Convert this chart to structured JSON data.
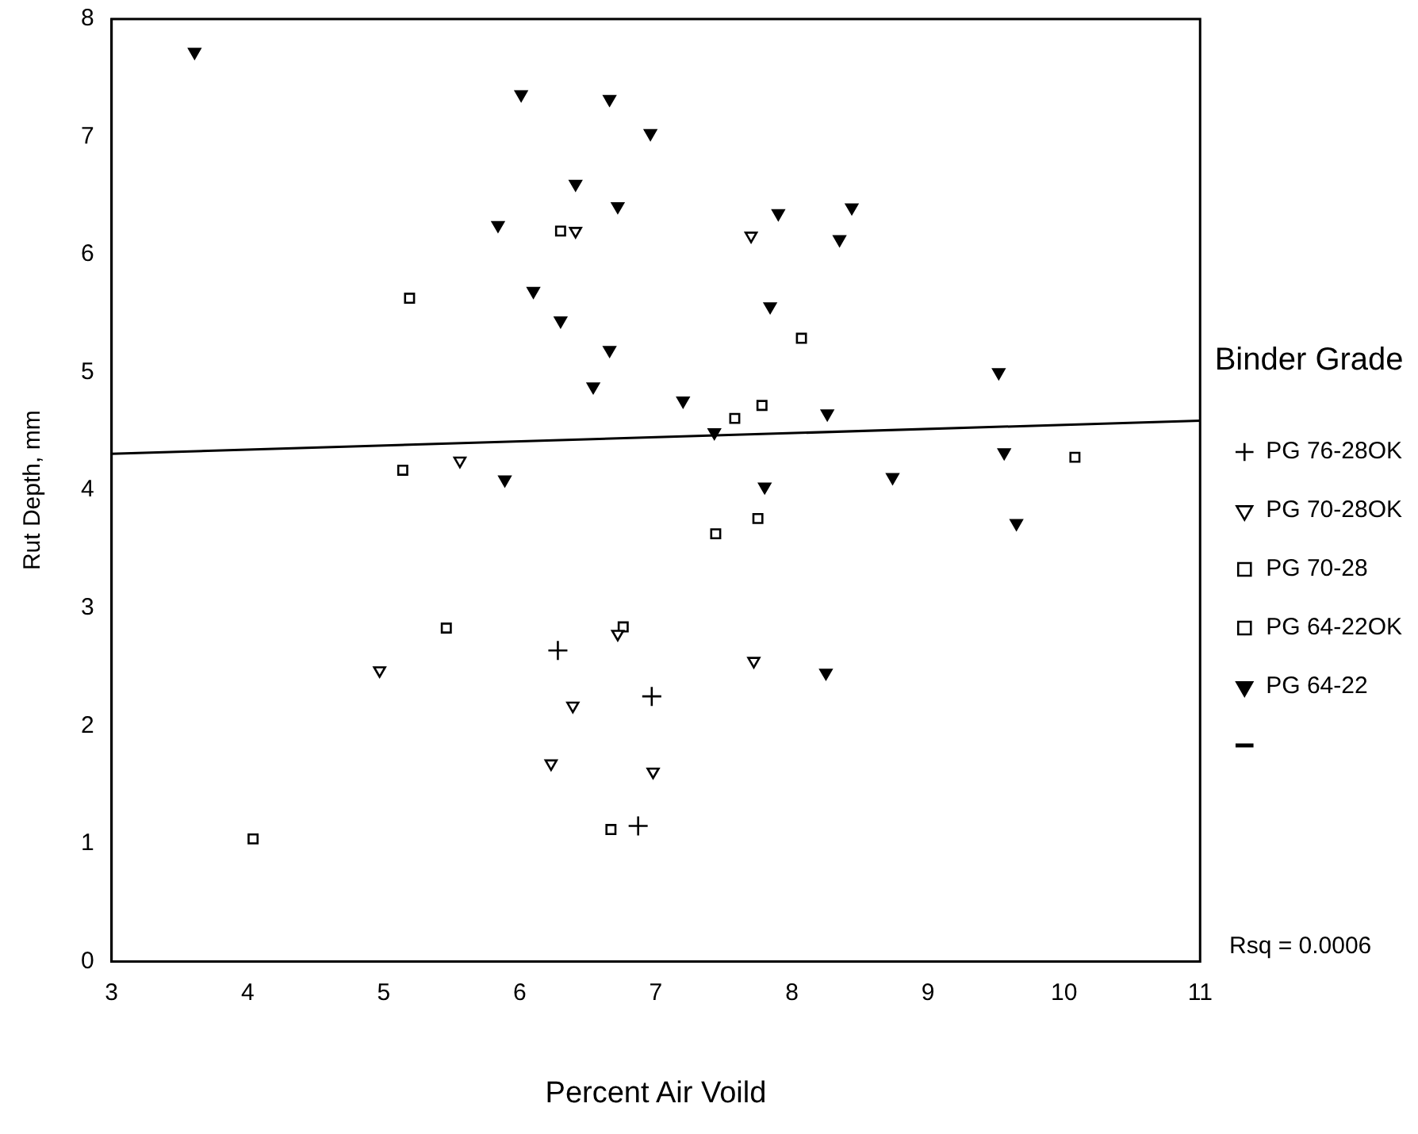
{
  "chart_data": {
    "type": "scatter",
    "xlabel": "Percent Air Voild",
    "ylabel": "Rut Depth, mm",
    "legend_title": "Binder Grade",
    "legend": "right",
    "grid": false,
    "xlim": [
      3,
      11
    ],
    "xticks": [
      3,
      4,
      5,
      6,
      7,
      8,
      9,
      10,
      11
    ],
    "ylim": [
      0,
      8
    ],
    "yticks": [
      0,
      1,
      2,
      3,
      4,
      5,
      6,
      7,
      8
    ],
    "annotations": [
      "Rsq = 0.0006"
    ],
    "series": [
      {
        "name": "PG 76-28OK",
        "color": "#000000",
        "marker": "cross",
        "x": [
          6.28,
          6.97,
          6.87
        ],
        "values": [
          2.64,
          2.25,
          1.15
        ]
      },
      {
        "name": "PG 70-28OK",
        "color": "#000000",
        "marker": "triangle",
        "x": [
          6.41,
          7.7,
          5.56,
          4.97,
          6.72,
          6.39,
          6.23,
          6.98,
          7.72
        ],
        "values": [
          6.2,
          6.16,
          4.25,
          2.47,
          2.78,
          2.17,
          1.68,
          1.61,
          2.55
        ]
      },
      {
        "name": "PG 70-28",
        "color": "#000000",
        "marker": "square",
        "x": [
          5.14,
          5.46,
          6.76,
          4.04,
          6.67,
          7.75
        ],
        "values": [
          4.17,
          2.83,
          2.84,
          1.04,
          1.12,
          3.76
        ]
      },
      {
        "name": "PG 64-22OK",
        "color": "#000000",
        "marker": "square",
        "x": [
          5.19,
          6.3,
          8.07,
          7.58,
          7.78,
          10.08,
          7.44
        ],
        "values": [
          5.63,
          6.2,
          5.29,
          4.61,
          4.72,
          4.28,
          3.63
        ]
      },
      {
        "name": "PG 64-22",
        "color": "#000000",
        "marker": "triangle",
        "x": [
          3.61,
          6.01,
          6.66,
          6.96,
          6.41,
          6.72,
          5.84,
          6.1,
          6.3,
          6.66,
          6.54,
          7.2,
          7.43,
          5.89,
          7.9,
          8.44,
          8.35,
          7.84,
          9.52,
          8.26,
          9.56,
          7.8,
          8.74,
          9.65,
          8.25
        ],
        "values": [
          7.72,
          7.36,
          7.32,
          7.03,
          6.6,
          6.41,
          6.25,
          5.69,
          5.44,
          5.19,
          4.88,
          4.76,
          4.49,
          4.09,
          6.35,
          6.4,
          6.13,
          5.56,
          5.0,
          4.65,
          4.32,
          4.03,
          4.11,
          3.72,
          2.45
        ]
      },
      {
        "type": "line",
        "color": "#000000",
        "marker": "none",
        "x": [
          3,
          11
        ],
        "values": [
          4.31,
          4.59
        ]
      }
    ]
  }
}
